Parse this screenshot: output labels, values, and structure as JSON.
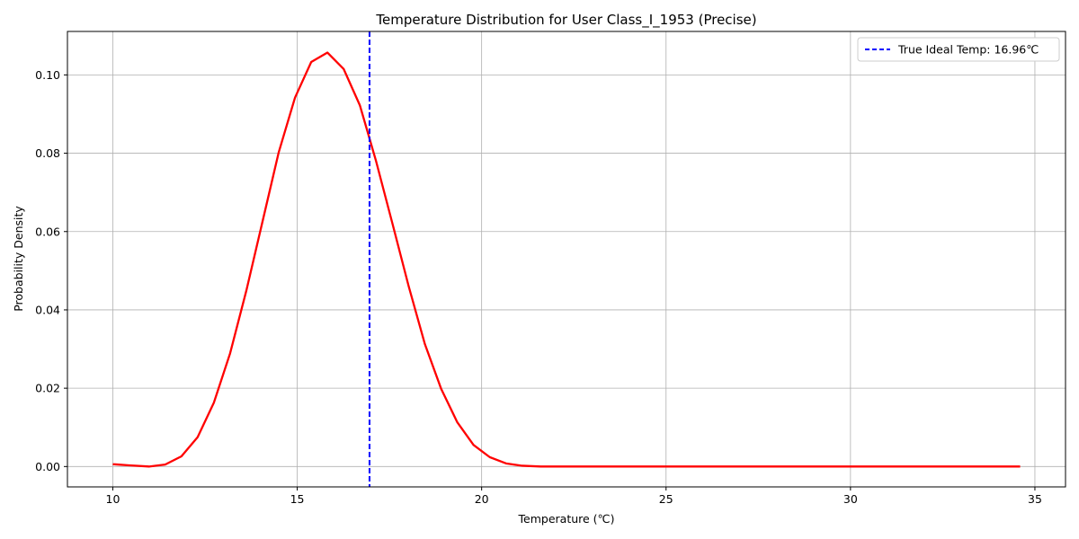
{
  "chart_data": {
    "type": "line",
    "title": "Temperature Distribution for User Class_I_1953 (Precise)",
    "xlabel": "Temperature (℃)",
    "ylabel": "Probability Density",
    "xlim": [
      8.77,
      35.83
    ],
    "ylim": [
      -0.0052,
      0.1111
    ],
    "xticks": [
      10,
      15,
      20,
      25,
      30,
      35
    ],
    "yticks": [
      0.0,
      0.02,
      0.04,
      0.06,
      0.08,
      0.1
    ],
    "xtick_labels": [
      "10",
      "15",
      "20",
      "25",
      "30",
      "35"
    ],
    "ytick_labels": [
      "0.00",
      "0.02",
      "0.04",
      "0.06",
      "0.08",
      "0.10"
    ],
    "grid": true,
    "legend_position": "top-right",
    "series": [
      {
        "color": "#ff0000",
        "x": [
          10.0,
          10.44,
          10.98,
          11.42,
          11.86,
          12.3,
          12.74,
          13.18,
          13.62,
          14.06,
          14.5,
          14.94,
          15.38,
          15.82,
          16.26,
          16.7,
          17.14,
          17.58,
          18.02,
          18.46,
          18.9,
          19.34,
          19.78,
          20.22,
          20.66,
          21.1,
          21.6,
          22.5,
          25.0,
          30.0,
          34.6
        ],
        "y": [
          0.0006,
          0.0003,
          0.0,
          0.0005,
          0.0026,
          0.0075,
          0.0163,
          0.0289,
          0.0449,
          0.0626,
          0.0803,
          0.0942,
          0.1033,
          0.1057,
          0.1015,
          0.0922,
          0.0779,
          0.0621,
          0.0461,
          0.0313,
          0.0199,
          0.0113,
          0.0055,
          0.0024,
          0.0008,
          0.0002,
          0.0,
          0.0,
          0.0,
          0.0,
          0.0
        ]
      }
    ],
    "vlines": [
      {
        "name": "True Ideal Temp: 16.96℃",
        "x": 16.96,
        "color": "#0000ff",
        "style": "dashed"
      }
    ]
  }
}
